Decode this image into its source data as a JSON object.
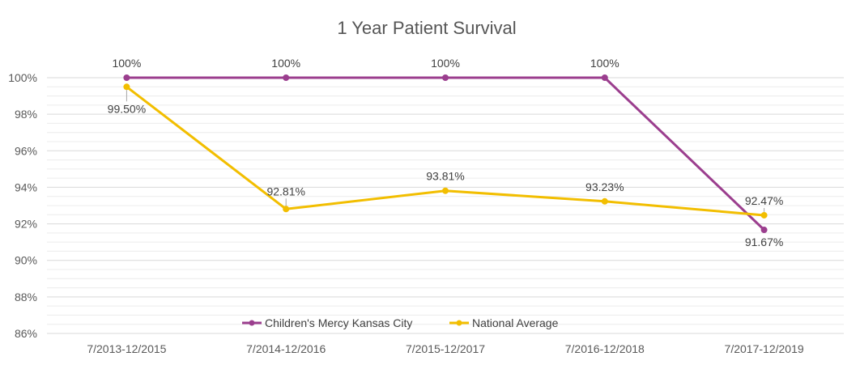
{
  "chart_data": {
    "type": "line",
    "title": "1 Year Patient Survival",
    "categories": [
      "7/2013-12/2015",
      "7/2014-12/2016",
      "7/2015-12/2017",
      "7/2016-12/2018",
      "7/2017-12/2019"
    ],
    "ylim": [
      86,
      100
    ],
    "yticks": [
      86,
      88,
      90,
      92,
      94,
      96,
      98,
      100
    ],
    "ytick_labels": [
      "86%",
      "88%",
      "90%",
      "92%",
      "94%",
      "96%",
      "98%",
      "100%"
    ],
    "grid": true,
    "legend_position": "bottom-center",
    "series": [
      {
        "name": "Children's Mercy Kansas City",
        "color": "#9B3E8E",
        "values": [
          100,
          100,
          100,
          100,
          91.67
        ],
        "labels": [
          "100%",
          "100%",
          "100%",
          "100%",
          "91.67%"
        ]
      },
      {
        "name": "National Average",
        "color": "#F2BE00",
        "values": [
          99.5,
          92.81,
          93.81,
          93.23,
          92.47
        ],
        "labels": [
          "99.50%",
          "92.81%",
          "93.81%",
          "93.23%",
          "92.47%"
        ]
      }
    ]
  }
}
